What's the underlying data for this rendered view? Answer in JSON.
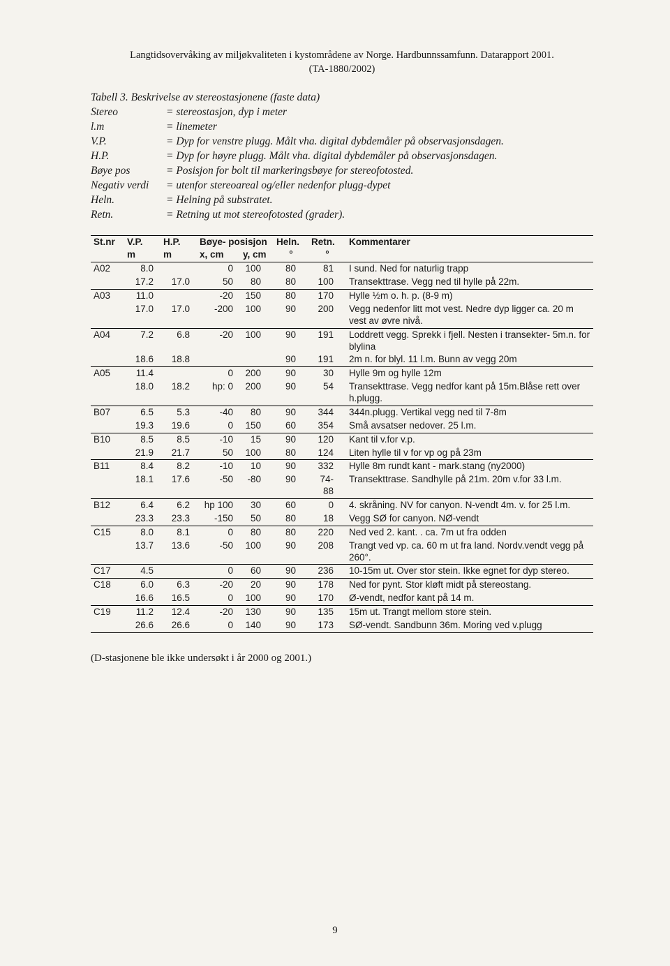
{
  "header": {
    "line1": "Langtidsovervåking av miljøkvaliteten i kystområdene av Norge. Hardbunnssamfunn. Datarapport 2001.",
    "line2": "(TA-1880/2002)"
  },
  "caption": "Tabell 3. Beskrivelse av stereostasjonene (faste data)",
  "definitions": [
    {
      "term": "Stereo",
      "val": "= stereostasjon, dyp i meter"
    },
    {
      "term": "l.m",
      "val": "= linemeter"
    },
    {
      "term": "V.P.",
      "val": "= Dyp for venstre plugg. Målt vha. digital dybdemåler på observasjonsdagen."
    },
    {
      "term": "H.P.",
      "val": "= Dyp for høyre plugg. Målt vha. digital dybdemåler på observasjonsdagen."
    },
    {
      "term": "Bøye pos",
      "val": "= Posisjon for bolt til markeringsbøye for stereofotosted."
    },
    {
      "term": "Negativ verdi",
      "val": "= utenfor stereoareal og/eller nedenfor plugg-dypet"
    },
    {
      "term": "Heln.",
      "val": "= Helning på substratet."
    },
    {
      "term": "Retn.",
      "val": "= Retning ut mot stereofotosted (grader)."
    }
  ],
  "columns": {
    "st": "St.nr",
    "vp": "V.P.",
    "hp": "H.P.",
    "boye": "Bøye- posisjon",
    "heln": "Heln.",
    "retn": "Retn.",
    "komm": "Kommentarer",
    "sub_vp": "m",
    "sub_hp": "m",
    "sub_bx": "x, cm",
    "sub_by": "y, cm",
    "sub_heln": "°",
    "sub_retn": "°"
  },
  "rows": [
    {
      "st": "A02",
      "vp": "8.0",
      "hp": "",
      "bx": "0",
      "by": "100",
      "he": "80",
      "re": "81",
      "k": "I sund. Ned for naturlig trapp",
      "sep": false
    },
    {
      "st": "",
      "vp": "17.2",
      "hp": "17.0",
      "bx": "50",
      "by": "80",
      "he": "80",
      "re": "100",
      "k": "Transekttrase. Vegg ned til hylle på 22m.",
      "sep": true
    },
    {
      "st": "A03",
      "vp": "11.0",
      "hp": "",
      "bx": "-20",
      "by": "150",
      "he": "80",
      "re": "170",
      "k": "Hylle ½m o. h. p. (8-9 m)",
      "sep": false
    },
    {
      "st": "",
      "vp": "17.0",
      "hp": "17.0",
      "bx": "-200",
      "by": "100",
      "he": "90",
      "re": "200",
      "k": "Vegg nedenfor litt mot vest. Nedre dyp ligger ca. 20 m vest av øvre nivå.",
      "sep": true
    },
    {
      "st": "A04",
      "vp": "7.2",
      "hp": "6.8",
      "bx": "-20",
      "by": "100",
      "he": "90",
      "re": "191",
      "k": "Loddrett vegg. Sprekk i fjell. Nesten i transekter- 5m.n. for blylina",
      "sep": false
    },
    {
      "st": "",
      "vp": "18.6",
      "hp": "18.8",
      "bx": "",
      "by": "",
      "he": "90",
      "re": "191",
      "k": "2m n. for blyl. 11 l.m. Bunn av vegg 20m",
      "sep": true
    },
    {
      "st": "A05",
      "vp": "11.4",
      "hp": "",
      "bx": "0",
      "by": "200",
      "he": "90",
      "re": "30",
      "k": "Hylle 9m og hylle 12m",
      "sep": false
    },
    {
      "st": "",
      "vp": "18.0",
      "hp": "18.2",
      "bx": "hp: 0",
      "by": "200",
      "he": "90",
      "re": "54",
      "k": "Transekttrase. Vegg nedfor kant på 15m.Blåse rett over h.plugg.",
      "sep": true
    },
    {
      "st": "B07",
      "vp": "6.5",
      "hp": "5.3",
      "bx": "-40",
      "by": "80",
      "he": "90",
      "re": "344",
      "k": "344n.plugg. Vertikal vegg ned til 7-8m",
      "sep": false
    },
    {
      "st": "",
      "vp": "19.3",
      "hp": "19.6",
      "bx": "0",
      "by": "150",
      "he": "60",
      "re": "354",
      "k": "Små avsatser nedover. 25 l.m.",
      "sep": true
    },
    {
      "st": "B10",
      "vp": "8.5",
      "hp": "8.5",
      "bx": "-10",
      "by": "15",
      "he": "90",
      "re": "120",
      "k": "Kant til v.for v.p.",
      "sep": false
    },
    {
      "st": "",
      "vp": "21.9",
      "hp": "21.7",
      "bx": "50",
      "by": "100",
      "he": "80",
      "re": "124",
      "k": "Liten hylle til v for vp og på 23m",
      "sep": true
    },
    {
      "st": "B11",
      "vp": "8.4",
      "hp": "8.2",
      "bx": "-10",
      "by": "10",
      "he": "90",
      "re": "332",
      "k": "Hylle 8m rundt kant - mark.stang  (ny2000)",
      "sep": false
    },
    {
      "st": "",
      "vp": "18.1",
      "hp": "17.6",
      "bx": "-50",
      "by": "-80",
      "he": "90",
      "re": "74-88",
      "k": "Transekttrase. Sandhylle på 21m. 20m v.for 33 l.m.",
      "sep": true
    },
    {
      "st": "B12",
      "vp": "6.4",
      "hp": "6.2",
      "bx": "hp 100",
      "by": "30",
      "he": "60",
      "re": "0",
      "k": "4. skråning. NV for canyon. N-vendt 4m. v. for 25 l.m.",
      "sep": false
    },
    {
      "st": "",
      "vp": "23.3",
      "hp": "23.3",
      "bx": "-150",
      "by": "50",
      "he": "80",
      "re": "18",
      "k": "Vegg SØ for canyon. NØ-vendt",
      "sep": true
    },
    {
      "st": "C15",
      "vp": "8.0",
      "hp": "8.1",
      "bx": "0",
      "by": "80",
      "he": "80",
      "re": "220",
      "k": "Ned ved 2. kant. . ca. 7m ut fra odden",
      "sep": false
    },
    {
      "st": "",
      "vp": "13.7",
      "hp": "13.6",
      "bx": "-50",
      "by": "100",
      "he": "90",
      "re": "208",
      "k": "Trangt ved vp. ca. 60 m ut fra land. Nordv.vendt vegg på 260°.",
      "sep": true
    },
    {
      "st": "C17",
      "vp": "4.5",
      "hp": "",
      "bx": "0",
      "by": "60",
      "he": "90",
      "re": "236",
      "k": "10-15m ut. Over stor stein. Ikke egnet for dyp stereo.",
      "sep": true
    },
    {
      "st": "C18",
      "vp": "6.0",
      "hp": "6.3",
      "bx": "-20",
      "by": "20",
      "he": "90",
      "re": "178",
      "k": "Ned for pynt. Stor kløft midt på stereostang.",
      "sep": false
    },
    {
      "st": "",
      "vp": "16.6",
      "hp": "16.5",
      "bx": "0",
      "by": "100",
      "he": "90",
      "re": "170",
      "k": "Ø-vendt, nedfor kant på 14 m.",
      "sep": true
    },
    {
      "st": "C19",
      "vp": "11.2",
      "hp": "12.4",
      "bx": "-20",
      "by": "130",
      "he": "90",
      "re": "135",
      "k": "15m ut. Trangt mellom store stein.",
      "sep": false
    },
    {
      "st": "",
      "vp": "26.6",
      "hp": "26.6",
      "bx": "0",
      "by": "140",
      "he": "90",
      "re": "173",
      "k": "SØ-vendt. Sandbunn 36m. Moring ved v.plugg",
      "sep": false,
      "last": true
    }
  ],
  "footnote": "(D-stasjonene ble ikke undersøkt i år 2000 og 2001.)",
  "pagenum": "9"
}
